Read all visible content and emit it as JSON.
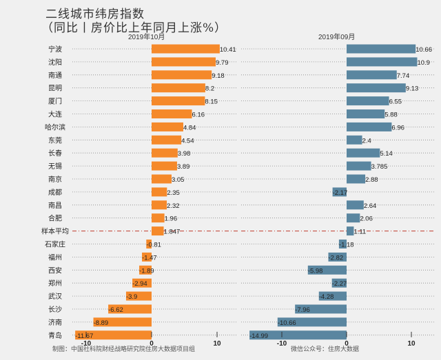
{
  "chart_data": {
    "type": "bar",
    "title": "二线城市纬房指数",
    "subtitle": "（同比丨房价比上年同月上涨%）",
    "categories": [
      "宁波",
      "沈阳",
      "南通",
      "昆明",
      "厦门",
      "大连",
      "哈尔滨",
      "东莞",
      "长春",
      "无锡",
      "南京",
      "成都",
      "南昌",
      "合肥",
      "样本平均",
      "石家庄",
      "福州",
      "西安",
      "郑州",
      "武汉",
      "长沙",
      "济南",
      "青岛"
    ],
    "series": [
      {
        "name": "2019年10月",
        "color": "#f5892a",
        "values": [
          10.41,
          9.79,
          9.18,
          8.2,
          8.15,
          6.16,
          4.84,
          4.54,
          3.98,
          3.89,
          3.05,
          2.35,
          2.32,
          1.96,
          1.847,
          -0.81,
          -1.47,
          -1.89,
          -2.94,
          -3.9,
          -6.62,
          -8.89,
          -11.67
        ],
        "labels": [
          "10.41",
          "9.79",
          "9.18",
          "8.2",
          "8.15",
          "6.16",
          "4.84",
          "4.54",
          "3.98",
          "3.89",
          "3.05",
          "2.35",
          "2.32",
          "1.96",
          "1.847",
          "-0.81",
          "-1.47",
          "-1.89",
          "-2.94",
          "-3.9",
          "-6.62",
          "-8.89",
          "-11.67"
        ]
      },
      {
        "name": "2019年09月",
        "color": "#5a86a0",
        "values": [
          10.66,
          10.9,
          7.74,
          9.13,
          6.55,
          5.88,
          6.96,
          2.4,
          5.14,
          3.785,
          2.88,
          -2.17,
          2.64,
          2.06,
          1.11,
          -1.18,
          -2.82,
          -5.98,
          -2.27,
          -4.28,
          -7.96,
          -10.66,
          -14.99
        ],
        "labels": [
          "10.66",
          "10.9",
          "7.74",
          "9.13",
          "6.55",
          "5.88",
          "6.96",
          "2.4",
          "5.14",
          "3.785",
          "2.88",
          "-2.17",
          "2.64",
          "2.06",
          "1.11",
          "-1.18",
          "-2.82",
          "-5.98",
          "-2.27",
          "-4.28",
          "-7.96",
          "-10.66",
          "-14.99"
        ]
      }
    ],
    "xticks": [
      "-10",
      "0",
      "10"
    ],
    "average_row": "样本平均",
    "average_line_color": "#c0392b"
  },
  "footer": {
    "left": "制图：中国社科院财经战略研究院住房大数据项目组",
    "right": "微信公众号：住房大数据"
  }
}
